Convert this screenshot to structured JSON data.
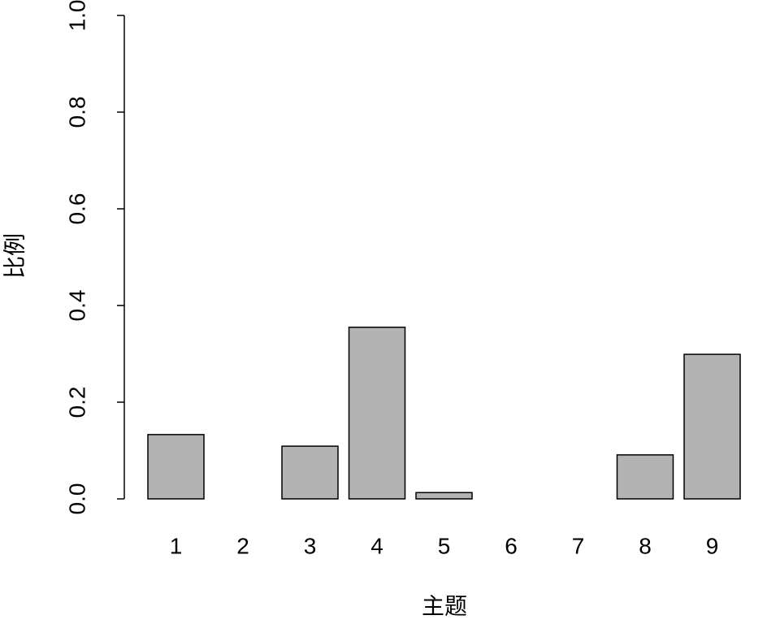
{
  "chart_data": {
    "type": "bar",
    "x_label": "主题",
    "y_label": "比例",
    "categories": [
      "1",
      "2",
      "3",
      "4",
      "5",
      "6",
      "7",
      "8",
      "9"
    ],
    "values": [
      0.133,
      0,
      0.109,
      0.355,
      0.013,
      0,
      0,
      0.091,
      0.299
    ],
    "color": "#b3b3b3",
    "ylim": [
      0,
      1
    ],
    "yticks": [
      {
        "value": 0,
        "label": "0.0"
      },
      0.2,
      0.4,
      0.6,
      0.8,
      {
        "value": 1,
        "label": "1.0"
      }
    ],
    "grid": false
  }
}
